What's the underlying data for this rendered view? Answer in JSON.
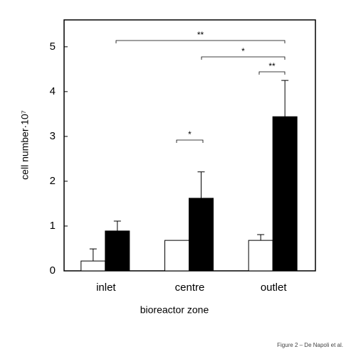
{
  "chart_data": {
    "type": "bar",
    "x_label": "bioreactor zone",
    "y_label": "cell number·10⁷",
    "categories": [
      "inlet",
      "centre",
      "outlet"
    ],
    "series": [
      {
        "color": "#ffffff",
        "values": [
          0.22,
          0.68,
          0.68
        ],
        "errors": [
          0.27,
          null,
          0.13
        ]
      },
      {
        "color": "#000000",
        "values": [
          0.89,
          1.62,
          3.44
        ],
        "errors": [
          0.22,
          0.59,
          0.81
        ]
      }
    ],
    "ylim": [
      0,
      5.6
    ],
    "yticks": [
      0,
      1,
      2,
      3,
      4,
      5
    ],
    "annotations": [
      "**",
      "*",
      "**",
      "*"
    ],
    "note": "Figure 2 – De Napoli et al."
  }
}
